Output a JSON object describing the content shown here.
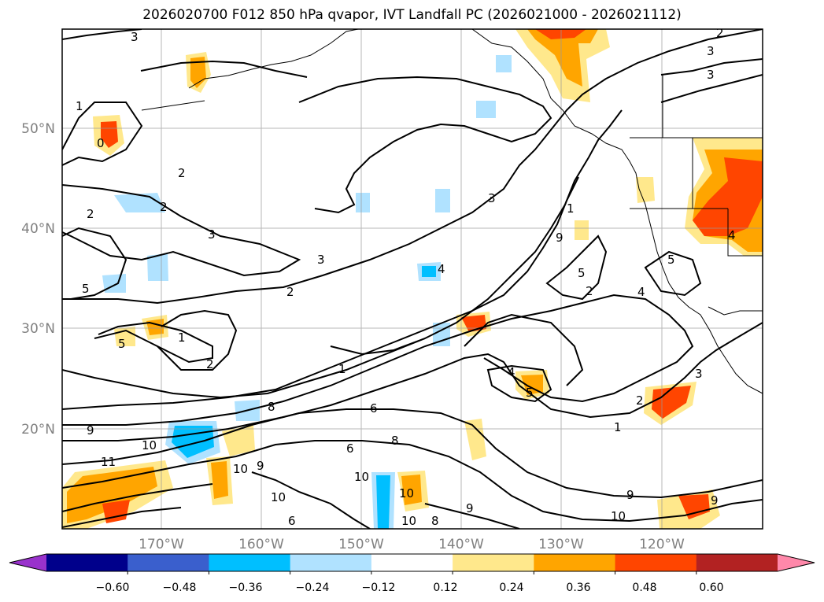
{
  "title": "2026020700 F012 850 hPa qvapor, IVT Landfall PC (2026021000 - 2026021112)",
  "map": {
    "latitude_labels": [
      "50°N",
      "40°N",
      "30°N",
      "20°N"
    ],
    "longitude_labels": [
      "170°W",
      "160°W",
      "150°W",
      "140°W",
      "130°W",
      "120°W"
    ],
    "contour_labels": [
      "3",
      "2",
      "3",
      "3",
      "1",
      "0",
      "2",
      "2",
      "3",
      "3",
      "3",
      "2",
      "1",
      "2",
      "1",
      "5",
      "9",
      "10",
      "11",
      "8",
      "10",
      "9",
      "10",
      "6",
      "8",
      "10",
      "10",
      "9",
      "10",
      "6",
      "4",
      "4",
      "5",
      "5",
      "9",
      "2",
      "1",
      "3",
      "2",
      "4",
      "5",
      "9",
      "10",
      "9",
      "4",
      "5",
      "2",
      "6",
      "1",
      "8"
    ]
  },
  "colorbar": {
    "ticks": [
      "−0.60",
      "−0.48",
      "−0.36",
      "−0.24",
      "−0.12",
      "0.12",
      "0.24",
      "0.36",
      "0.48",
      "0.60"
    ],
    "colors": [
      "#9932cc",
      "#00008b",
      "#3a5fcd",
      "#00bfff",
      "#b0e2ff",
      "#ffffff",
      "#ffe88c",
      "#ffa500",
      "#ff4500",
      "#b22222",
      "#ff88aa"
    ]
  }
}
